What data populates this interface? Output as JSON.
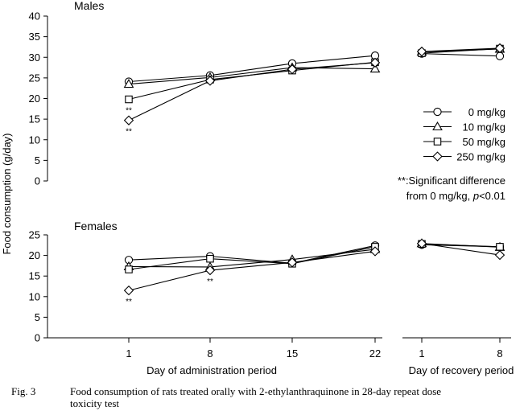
{
  "chart_data": [
    {
      "type": "line",
      "title": "Males",
      "ylabel": "Food consumption (g/day)",
      "ylim": [
        0,
        40
      ],
      "yticks": [
        0,
        5,
        10,
        15,
        20,
        25,
        30,
        35,
        40
      ],
      "groups": [
        {
          "name": "Day of administration period",
          "x": [
            1,
            8,
            15,
            22
          ]
        },
        {
          "name": "Day of recovery period",
          "x": [
            1,
            8
          ]
        }
      ],
      "series": [
        {
          "name": "0 mg/kg",
          "marker": "circle",
          "administration": [
            24.1,
            25.6,
            28.5,
            30.4
          ],
          "recovery": [
            30.9,
            30.3
          ]
        },
        {
          "name": "10 mg/kg",
          "marker": "triangle",
          "administration": [
            23.5,
            25.1,
            27.5,
            27.2
          ],
          "recovery": [
            31.3,
            32.0
          ]
        },
        {
          "name": "50 mg/kg",
          "marker": "square",
          "administration": [
            19.8,
            24.6,
            26.8,
            28.8
          ],
          "recovery": [
            31.0,
            32.1
          ]
        },
        {
          "name": "250 mg/kg",
          "marker": "diamond",
          "administration": [
            14.7,
            24.3,
            27.1,
            28.7
          ],
          "recovery": [
            31.4,
            32.2
          ]
        }
      ],
      "significance": [
        {
          "group": "administration",
          "x": 1,
          "series": "50 mg/kg",
          "label": "**"
        },
        {
          "group": "administration",
          "x": 1,
          "series": "250 mg/kg",
          "label": "**"
        }
      ],
      "legend": {
        "position": "right",
        "entries": [
          "0 mg/kg",
          "10 mg/kg",
          "50 mg/kg",
          "250 mg/kg"
        ]
      },
      "note": {
        "line1_mark": "**",
        "line1_text": ":Significant difference",
        "line2_prefix": "from 0 mg/kg, ",
        "line2_p": "p",
        "line2_suffix": "<0.01"
      }
    },
    {
      "type": "line",
      "title": "Females",
      "ylim": [
        0,
        25
      ],
      "yticks": [
        0,
        5,
        10,
        15,
        20,
        25
      ],
      "groups": [
        {
          "name": "Day of administration period",
          "x": [
            1,
            8,
            15,
            22
          ],
          "xtick_labels": [
            "1",
            "8",
            "15",
            "22"
          ]
        },
        {
          "name": "Day of recovery period",
          "x": [
            1,
            8
          ],
          "xtick_labels": [
            "1",
            "8"
          ]
        }
      ],
      "series": [
        {
          "name": "0 mg/kg",
          "marker": "circle",
          "administration": [
            18.9,
            19.8,
            18.1,
            22.4
          ],
          "recovery": [
            22.6,
            22.1
          ]
        },
        {
          "name": "10 mg/kg",
          "marker": "triangle",
          "administration": [
            17.3,
            17.2,
            19.0,
            21.5
          ],
          "recovery": [
            22.9,
            22.0
          ]
        },
        {
          "name": "50 mg/kg",
          "marker": "square",
          "administration": [
            16.6,
            19.2,
            18.0,
            22.1
          ],
          "recovery": [
            22.8,
            22.1
          ]
        },
        {
          "name": "250 mg/kg",
          "marker": "diamond",
          "administration": [
            11.5,
            16.4,
            18.3,
            21.0
          ],
          "recovery": [
            22.9,
            20.1
          ]
        }
      ],
      "significance": [
        {
          "group": "administration",
          "x": 1,
          "series": "250 mg/kg",
          "label": "**"
        },
        {
          "group": "administration",
          "x": 8,
          "series": "250 mg/kg",
          "label": "**"
        }
      ],
      "xlabels": [
        "Day of administration period",
        "Day of recovery period"
      ]
    }
  ],
  "caption": {
    "label": "Fig. 3",
    "text_line1": "Food consumption of rats treated orally with 2-ethylanthraquinone in 28-day repeat dose",
    "text_line2": "toxicity test"
  },
  "colors": {
    "line": "#000000",
    "marker_fill": "#ffffff",
    "background": "#ffffff"
  }
}
